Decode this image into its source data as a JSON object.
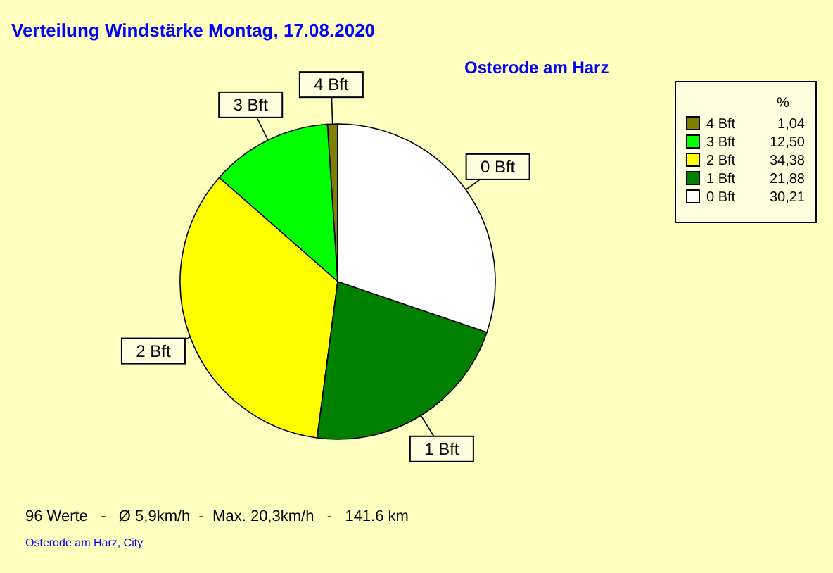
{
  "chart_data": {
    "type": "pie",
    "title": "Verteilung Windstärke  Montag, 17.08.2020",
    "subtitle": "Osterode am Harz",
    "categories": [
      "4 Bft",
      "3 Bft",
      "2 Bft",
      "1 Bft",
      "0 Bft"
    ],
    "values": [
      1.04,
      12.5,
      34.38,
      21.88,
      30.21
    ],
    "value_labels": [
      "1,04",
      "12,50",
      "34,38",
      "21,88",
      "30,21"
    ],
    "colors": [
      "#808000",
      "#00ff00",
      "#ffff00",
      "#008000",
      "#ffffff"
    ],
    "legend": "top right",
    "legend_title": "%",
    "annotations": [
      "96 Werte   -   Ø 5,9km/h  -  Max. 20,3km/h   -   141.6 km",
      "Osterode am Harz, City"
    ]
  }
}
